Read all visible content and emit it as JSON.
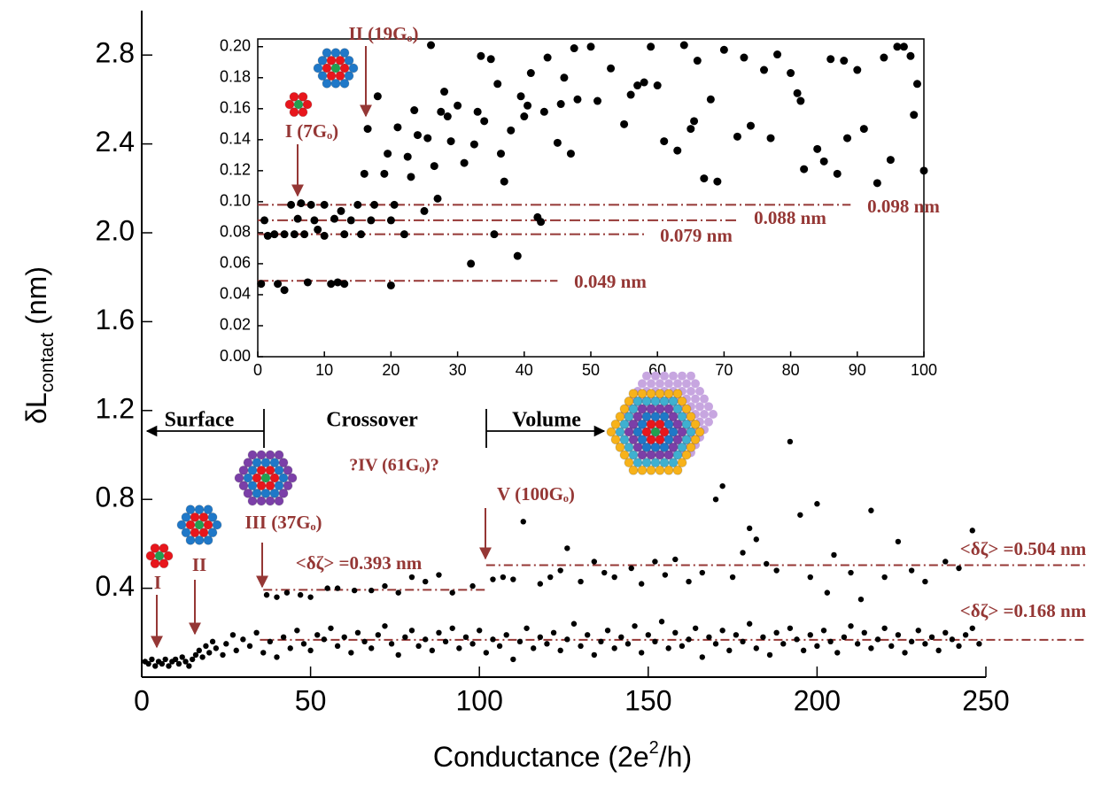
{
  "chart_data": [
    {
      "type": "scatter",
      "x_label": [
        "Conductance (2e",
        "2",
        "/h)"
      ],
      "y_label": [
        "δL",
        "contact",
        " (nm)"
      ],
      "xlim": [
        0,
        250
      ],
      "xticks": [
        0,
        50,
        100,
        150,
        200,
        250
      ],
      "ylim": [
        0,
        3
      ],
      "yticks": [
        0.4,
        0.8,
        1.2,
        1.6,
        2.0,
        2.4,
        2.8
      ],
      "series": [
        {
          "color": "#000000",
          "x": [
            1,
            2,
            3,
            4,
            5,
            6,
            7,
            8,
            9,
            10,
            11,
            12,
            13,
            14,
            15,
            16,
            17,
            18,
            19,
            20,
            21,
            22,
            24,
            25,
            27,
            28,
            30,
            32,
            34,
            36,
            38,
            40,
            42,
            44,
            46,
            48,
            50,
            52,
            54,
            56,
            58,
            60,
            62,
            64,
            66,
            68,
            70,
            72,
            74,
            76,
            78,
            80,
            82,
            84,
            86,
            88,
            90,
            92,
            94,
            96,
            98,
            100,
            102,
            104,
            106,
            108,
            110,
            112,
            114,
            116,
            118,
            120,
            122,
            124,
            126,
            128,
            130,
            132,
            134,
            136,
            138,
            140,
            142,
            144,
            146,
            148,
            150,
            152,
            154,
            156,
            158,
            160,
            162,
            164,
            166,
            168,
            170,
            172,
            174,
            176,
            178,
            180,
            182,
            184,
            186,
            188,
            190,
            192,
            194,
            196,
            198,
            200,
            202,
            204,
            206,
            208,
            210,
            212,
            214,
            216,
            218,
            220,
            222,
            224,
            226,
            228,
            230,
            232,
            234,
            236,
            238,
            240,
            242,
            244,
            246,
            248,
            37,
            40,
            43,
            47,
            50,
            55,
            58,
            63,
            68,
            72,
            76,
            80,
            84,
            88,
            92,
            98,
            104,
            107,
            110,
            113,
            118,
            121,
            124,
            126,
            130,
            134,
            137,
            140,
            145,
            148,
            152,
            155,
            158,
            162,
            166,
            170,
            172,
            175,
            178,
            180,
            182,
            185,
            188,
            192,
            195,
            198,
            200,
            203,
            205,
            210,
            213,
            216,
            220,
            224,
            228,
            232,
            238,
            242,
            246
          ],
          "values": [
            0.07,
            0.06,
            0.08,
            0.05,
            0.07,
            0.06,
            0.08,
            0.05,
            0.07,
            0.08,
            0.06,
            0.09,
            0.07,
            0.05,
            0.08,
            0.1,
            0.12,
            0.09,
            0.14,
            0.11,
            0.16,
            0.13,
            0.1,
            0.15,
            0.19,
            0.12,
            0.17,
            0.14,
            0.2,
            0.11,
            0.16,
            0.09,
            0.18,
            0.13,
            0.21,
            0.15,
            0.12,
            0.19,
            0.17,
            0.22,
            0.14,
            0.18,
            0.11,
            0.2,
            0.16,
            0.13,
            0.19,
            0.23,
            0.15,
            0.1,
            0.18,
            0.21,
            0.14,
            0.17,
            0.12,
            0.2,
            0.16,
            0.22,
            0.13,
            0.18,
            0.15,
            0.21,
            0.11,
            0.17,
            0.14,
            0.19,
            0.08,
            0.16,
            0.22,
            0.13,
            0.18,
            0.15,
            0.2,
            0.12,
            0.17,
            0.24,
            0.14,
            0.19,
            0.1,
            0.16,
            0.21,
            0.13,
            0.18,
            0.15,
            0.23,
            0.11,
            0.19,
            0.16,
            0.25,
            0.13,
            0.2,
            0.14,
            0.17,
            0.22,
            0.09,
            0.18,
            0.15,
            0.21,
            0.12,
            0.19,
            0.16,
            0.24,
            0.13,
            0.18,
            0.1,
            0.2,
            0.15,
            0.22,
            0.17,
            0.12,
            0.19,
            0.14,
            0.21,
            0.16,
            0.11,
            0.18,
            0.23,
            0.15,
            0.2,
            0.13,
            0.17,
            0.22,
            0.14,
            0.19,
            0.11,
            0.16,
            0.21,
            0.15,
            0.18,
            0.12,
            0.2,
            0.17,
            0.14,
            0.19,
            0.22,
            0.15,
            0.37,
            0.36,
            0.38,
            0.37,
            0.36,
            0.4,
            0.4,
            0.39,
            0.39,
            0.41,
            0.38,
            0.45,
            0.43,
            0.46,
            0.38,
            0.41,
            0.44,
            0.45,
            0.44,
            0.7,
            0.42,
            0.45,
            0.48,
            0.58,
            0.43,
            0.52,
            0.47,
            0.45,
            0.49,
            0.42,
            0.52,
            0.46,
            0.53,
            0.43,
            0.47,
            0.8,
            0.86,
            0.45,
            0.56,
            0.67,
            0.62,
            0.51,
            0.48,
            1.06,
            0.73,
            0.45,
            0.78,
            0.38,
            0.55,
            0.47,
            0.35,
            0.75,
            0.45,
            0.61,
            0.48,
            0.43,
            0.52,
            0.49,
            0.66
          ]
        }
      ],
      "reference_lines": [
        {
          "value": 0.168,
          "label": "<δζ> =0.168 nm",
          "span": [
            35,
            280
          ]
        },
        {
          "value": 0.393,
          "label": "<δζ> =0.393 nm",
          "span": [
            36,
            102
          ]
        },
        {
          "value": 0.504,
          "label": "<δζ> =0.504 nm",
          "span": [
            102,
            280
          ]
        }
      ],
      "annotations": [
        "Surface",
        "Crossover",
        "Volume",
        "?IV (61Gₒ)?",
        "III (37Gₒ)",
        "II",
        "I",
        "V (100Gₒ)"
      ]
    },
    {
      "type": "scatter",
      "xlim": [
        0,
        100
      ],
      "xticks": [
        0,
        10,
        20,
        30,
        40,
        50,
        60,
        70,
        80,
        90,
        100
      ],
      "ylim": [
        0,
        0.205
      ],
      "yticks": [
        {
          "value": 0,
          "label": "0.00"
        },
        {
          "value": 0.02,
          "label": "0.02"
        },
        {
          "value": 0.04,
          "label": "0.04"
        },
        {
          "value": 0.06,
          "label": "0.06"
        },
        {
          "value": 0.08,
          "label": "0.08"
        },
        {
          "value": 0.1,
          "label": "0.10"
        },
        {
          "value": 0.12,
          "label": "0.12"
        },
        {
          "value": 0.14,
          "label": "0.14"
        },
        {
          "value": 0.16,
          "label": "0.16"
        },
        {
          "value": 0.18,
          "label": "0.18"
        },
        {
          "value": 0.2,
          "label": "0.20"
        }
      ],
      "series": [
        {
          "color": "#000000",
          "x": [
            0.5,
            1,
            1.5,
            2.5,
            3,
            4,
            4,
            5,
            5.5,
            6,
            6.5,
            7,
            7.5,
            8,
            8.5,
            9,
            10,
            10,
            11,
            11.5,
            12,
            12.5,
            13,
            13,
            14,
            15,
            15.5,
            16,
            16.5,
            17,
            17.5,
            18,
            19,
            19.5,
            20,
            20,
            20.5,
            21,
            22,
            22.5,
            23,
            23.5,
            24,
            25,
            25.5,
            26,
            26.5,
            27,
            27.5,
            28,
            28.5,
            29,
            30,
            31,
            32,
            32.5,
            33,
            33.5,
            34,
            35,
            35.5,
            36,
            36.5,
            37,
            38,
            39,
            39.5,
            40,
            40.5,
            41,
            42,
            42.5,
            43,
            43.5,
            45,
            45.5,
            46,
            47,
            47.5,
            48,
            50,
            51,
            53,
            55,
            56,
            57,
            58,
            59,
            60,
            61,
            63,
            64,
            65,
            65.5,
            66,
            67,
            68,
            69,
            70,
            72,
            73,
            74,
            76,
            77,
            78,
            80,
            81,
            81.5,
            82,
            84,
            85,
            86,
            87,
            88,
            88.5,
            90,
            91,
            93,
            94,
            95,
            96,
            97,
            98,
            98.5,
            99,
            100
          ],
          "values": [
            0.047,
            0.088,
            0.078,
            0.079,
            0.047,
            0.079,
            0.043,
            0.098,
            0.079,
            0.089,
            0.099,
            0.079,
            0.048,
            0.098,
            0.088,
            0.082,
            0.098,
            0.078,
            0.047,
            0.089,
            0.048,
            0.094,
            0.079,
            0.047,
            0.088,
            0.098,
            0.079,
            0.118,
            0.147,
            0.088,
            0.098,
            0.168,
            0.118,
            0.131,
            0.046,
            0.088,
            0.098,
            0.148,
            0.079,
            0.129,
            0.116,
            0.159,
            0.143,
            0.094,
            0.141,
            0.201,
            0.123,
            0.102,
            0.158,
            0.171,
            0.155,
            0.139,
            0.162,
            0.125,
            0.06,
            0.137,
            0.158,
            0.194,
            0.152,
            0.192,
            0.079,
            0.176,
            0.131,
            0.113,
            0.146,
            0.065,
            0.168,
            0.155,
            0.162,
            0.183,
            0.09,
            0.087,
            0.158,
            0.193,
            0.138,
            0.163,
            0.18,
            0.131,
            0.199,
            0.166,
            0.2,
            0.165,
            0.186,
            0.15,
            0.169,
            0.175,
            0.177,
            0.2,
            0.175,
            0.139,
            0.133,
            0.201,
            0.147,
            0.152,
            0.191,
            0.115,
            0.166,
            0.113,
            0.198,
            0.142,
            0.193,
            0.149,
            0.185,
            0.141,
            0.195,
            0.183,
            0.17,
            0.165,
            0.121,
            0.134,
            0.126,
            0.192,
            0.118,
            0.191,
            0.141,
            0.185,
            0.147,
            0.112,
            0.193,
            0.127,
            0.2,
            0.2,
            0.194,
            0.156,
            0.176,
            0.12
          ]
        }
      ],
      "reference_lines": [
        {
          "value": 0.098,
          "label": "0.098 nm",
          "span": [
            0,
            89
          ]
        },
        {
          "value": 0.088,
          "label": "0.088 nm",
          "span": [
            0,
            72
          ]
        },
        {
          "value": 0.079,
          "label": "0.079 nm",
          "span": [
            0,
            58
          ]
        },
        {
          "value": 0.049,
          "label": "0.049 nm",
          "span": [
            0,
            45
          ]
        }
      ],
      "annotations": [
        "II (19Gₒ)",
        "I (7Gₒ)"
      ]
    }
  ]
}
